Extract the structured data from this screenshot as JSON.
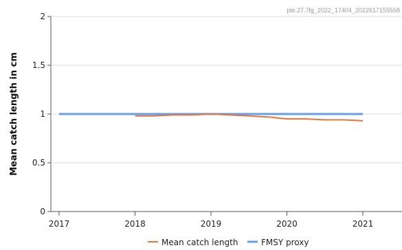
{
  "watermark": "ple.27.7fg_2022_17404_2022617155558",
  "chart_data": {
    "type": "line",
    "title": "",
    "xlabel": "",
    "ylabel": "Mean catch length in cm",
    "xlim": [
      2017,
      2021.5
    ],
    "ylim": [
      0,
      2
    ],
    "x_ticks": [
      2017,
      2018,
      2019,
      2020,
      2021
    ],
    "x_tick_labels": [
      "2017",
      "2018",
      "2019",
      "2020",
      "2021"
    ],
    "y_ticks": [
      0,
      0.5,
      1,
      1.5,
      2
    ],
    "y_tick_labels": [
      "0",
      "0.5",
      "1",
      "1.5",
      "2"
    ],
    "grid": "horizontal",
    "legend_position": "bottom",
    "series": [
      {
        "name": "Mean catch length",
        "color": "#e8743b",
        "x": [
          2018,
          2018.25,
          2018.5,
          2018.75,
          2019,
          2019.25,
          2019.5,
          2019.75,
          2020,
          2020.25,
          2020.5,
          2020.75,
          2021
        ],
        "y": [
          0.98,
          0.98,
          0.99,
          0.99,
          1.0,
          0.99,
          0.98,
          0.97,
          0.95,
          0.95,
          0.94,
          0.94,
          0.93
        ]
      },
      {
        "name": "FMSY proxy",
        "color": "#6a9fe8",
        "x": [
          2017,
          2021
        ],
        "y": [
          1,
          1
        ]
      }
    ]
  }
}
